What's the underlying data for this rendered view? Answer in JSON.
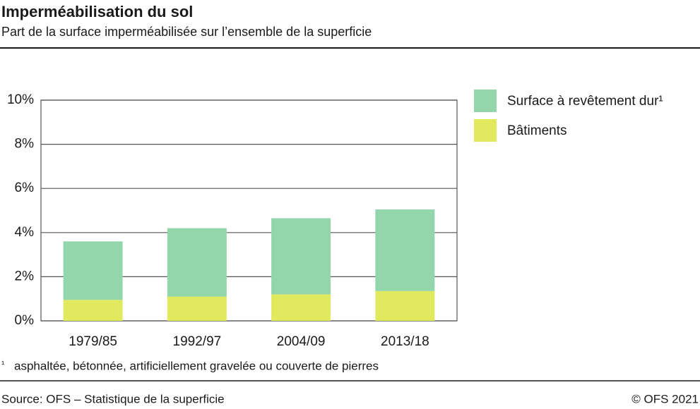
{
  "chart_data": {
    "type": "stacked-bar",
    "title": "Imperméabilisation du sol",
    "subtitle": "Part de la surface imperméabilisée sur l’ensemble de la superficie",
    "categories": [
      "1979/85",
      "1992/97",
      "2004/09",
      "2013/18"
    ],
    "series": [
      {
        "name": "Bâtiments",
        "color": "#e1ea5f",
        "values": [
          0.95,
          1.1,
          1.2,
          1.35
        ]
      },
      {
        "name": "Surface à revêtement dur¹",
        "color": "#93d6ab",
        "values": [
          2.65,
          3.1,
          3.45,
          3.7
        ]
      }
    ],
    "ylim": [
      0,
      10
    ],
    "yticks": [
      {
        "value": 0,
        "label": "0%"
      },
      {
        "value": 2,
        "label": "2%"
      },
      {
        "value": 4,
        "label": "4%"
      },
      {
        "value": 6,
        "label": "6%"
      },
      {
        "value": 8,
        "label": "8%"
      },
      {
        "value": 10,
        "label": "10%"
      }
    ],
    "grid": true,
    "footnote_mark": "¹",
    "footnote": "asphaltée, bétonnée, artificiellement gravelée ou couverte de pierres",
    "source": "Source: OFS – Statistique de la superficie",
    "copyright": "© OFS 2021"
  }
}
